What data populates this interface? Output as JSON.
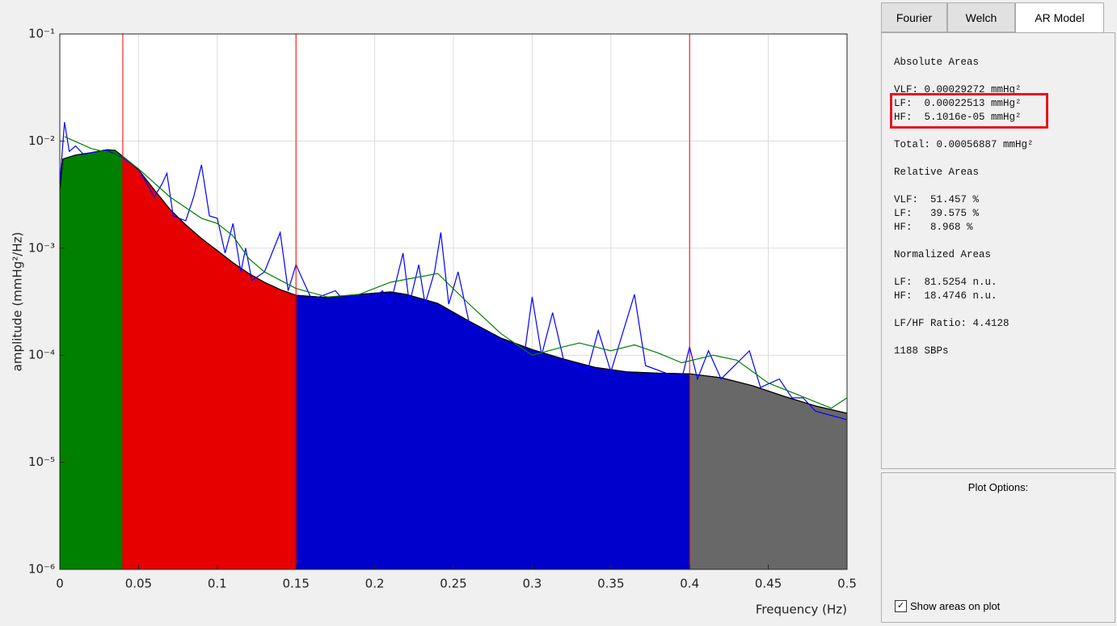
{
  "chart_data": {
    "type": "line",
    "y_label": "amplitude (mmHg²/Hz)",
    "x_label": "Frequency (Hz)",
    "xlim": [
      0,
      0.5
    ],
    "xticks": [
      0,
      0.05,
      0.1,
      0.15,
      0.2,
      0.25,
      0.3,
      0.35,
      0.4,
      0.45,
      0.5
    ],
    "ylim": [
      1e-06,
      0.1
    ],
    "log_y": true,
    "yticks": [
      {
        "value": 1e-06,
        "label": "10⁻⁶"
      },
      {
        "value": 1e-05,
        "label": "10⁻⁵"
      },
      {
        "value": 0.0001,
        "label": "10⁻⁴"
      },
      {
        "value": 0.001,
        "label": "10⁻³"
      },
      {
        "value": 0.01,
        "label": "10⁻²"
      },
      {
        "value": 0.1,
        "label": "10⁻¹"
      }
    ],
    "grid": true,
    "band_edge_color": "#ff0000",
    "bands": [
      {
        "from": 0,
        "to": 0.04,
        "color": "#008000"
      },
      {
        "from": 0.04,
        "to": 0.15,
        "color": "#e60000"
      },
      {
        "from": 0.15,
        "to": 0.4,
        "color": "#0000cc"
      },
      {
        "from": 0.4,
        "to": 0.5,
        "color": "#686868"
      }
    ],
    "series": [
      {
        "color": "#000000",
        "filled": true,
        "x": [
          0,
          0.002,
          0.01,
          0.02,
          0.03,
          0.035,
          0.04,
          0.05,
          0.06,
          0.07,
          0.08,
          0.09,
          0.1,
          0.11,
          0.12,
          0.13,
          0.14,
          0.15,
          0.17,
          0.19,
          0.21,
          0.22,
          0.24,
          0.26,
          0.28,
          0.3,
          0.32,
          0.34,
          0.36,
          0.38,
          0.4,
          0.42,
          0.44,
          0.46,
          0.48,
          0.5
        ],
        "values": [
          0.0035,
          0.0068,
          0.0074,
          0.0078,
          0.0083,
          0.0082,
          0.0072,
          0.0054,
          0.0035,
          0.0023,
          0.00165,
          0.00123,
          0.00095,
          0.00073,
          0.00058,
          0.00048,
          0.00041,
          0.000363,
          0.000345,
          0.00037,
          0.00039,
          0.00037,
          0.000305,
          0.000208,
          0.000145,
          0.000113,
          9.2e-05,
          7.7e-05,
          7e-05,
          6.8e-05,
          6.7e-05,
          6.17e-05,
          5.19e-05,
          4.13e-05,
          3.36e-05,
          2.87e-05
        ]
      },
      {
        "color": "#0000ff",
        "x": [
          0,
          0.003,
          0.006,
          0.01,
          0.015,
          0.02,
          0.03,
          0.04,
          0.05,
          0.06,
          0.065,
          0.068,
          0.072,
          0.08,
          0.085,
          0.09,
          0.095,
          0.1,
          0.105,
          0.11,
          0.115,
          0.118,
          0.122,
          0.13,
          0.14,
          0.145,
          0.15,
          0.16,
          0.175,
          0.18,
          0.2,
          0.205,
          0.21,
          0.218,
          0.222,
          0.228,
          0.232,
          0.238,
          0.242,
          0.247,
          0.253,
          0.26,
          0.28,
          0.295,
          0.3,
          0.306,
          0.313,
          0.32,
          0.335,
          0.342,
          0.35,
          0.365,
          0.372,
          0.395,
          0.4,
          0.405,
          0.412,
          0.42,
          0.438,
          0.445,
          0.457,
          0.465,
          0.472,
          0.48,
          0.5
        ],
        "values": [
          0.004,
          0.015,
          0.008,
          0.009,
          0.0075,
          0.0078,
          0.0082,
          0.007,
          0.0055,
          0.003,
          0.004,
          0.005,
          0.002,
          0.0018,
          0.003,
          0.006,
          0.002,
          0.0019,
          0.0009,
          0.0017,
          0.0006,
          0.001,
          0.0005,
          0.0006,
          0.0014,
          0.0004,
          0.0007,
          0.00033,
          0.0004,
          0.00033,
          0.00035,
          0.0004,
          0.0003,
          0.0009,
          0.0003,
          0.0007,
          0.0003,
          0.0006,
          0.0014,
          0.0003,
          0.0006,
          0.0002,
          0.00014,
          0.0001,
          0.00035,
          0.0001,
          0.00025,
          9e-05,
          7e-05,
          0.00017,
          7e-05,
          0.00037,
          8e-05,
          6e-05,
          0.00012,
          6e-05,
          0.00011,
          6e-05,
          0.00011,
          5e-05,
          6e-05,
          4e-05,
          4e-05,
          3e-05,
          2.5e-05
        ]
      },
      {
        "color": "#008000",
        "x": [
          0.003,
          0.02,
          0.04,
          0.05,
          0.07,
          0.09,
          0.1,
          0.11,
          0.12,
          0.13,
          0.15,
          0.17,
          0.19,
          0.21,
          0.24,
          0.26,
          0.28,
          0.3,
          0.32,
          0.33,
          0.35,
          0.365,
          0.38,
          0.395,
          0.415,
          0.43,
          0.45,
          0.47,
          0.49,
          0.5
        ],
        "values": [
          0.011,
          0.0085,
          0.0072,
          0.0055,
          0.003,
          0.0019,
          0.0017,
          0.0013,
          0.0008,
          0.0006,
          0.00042,
          0.00035,
          0.00037,
          0.00048,
          0.00058,
          0.0003,
          0.00016,
          0.0001,
          0.00012,
          0.00013,
          0.00011,
          0.000125,
          0.000105,
          8.5e-05,
          0.0001,
          9e-05,
          5.5e-05,
          4.2e-05,
          3.2e-05,
          4e-05
        ]
      }
    ]
  },
  "panel": {
    "tabs": [
      "Fourier",
      "Welch",
      "AR Model"
    ],
    "active_tab": 2,
    "blocks": [
      {
        "heading": "Absolute Areas",
        "lines": [
          "VLF: 0.00029272 mmHg²"
        ],
        "highlighted_lines": [
          "LF:  0.00022513 mmHg²",
          "HF:  5.1016e-05 mmHg²"
        ]
      },
      {
        "lines": [
          "Total: 0.00056887 mmHg²"
        ]
      },
      {
        "heading": "Relative Areas",
        "lines": [
          "VLF:  51.457 %",
          "LF:   39.575 %",
          "HF:   8.968 %"
        ]
      },
      {
        "heading": "Normalized Areas",
        "lines": [
          "LF:  81.5254 n.u.",
          "HF:  18.4746 n.u."
        ]
      },
      {
        "lines": [
          "LF/HF Ratio: 4.4128"
        ]
      },
      {
        "lines": [
          "1188 SBPs"
        ]
      }
    ],
    "plot_options": {
      "title": "Plot Options:",
      "checkbox_label": "Show areas on plot",
      "checked": true
    }
  }
}
